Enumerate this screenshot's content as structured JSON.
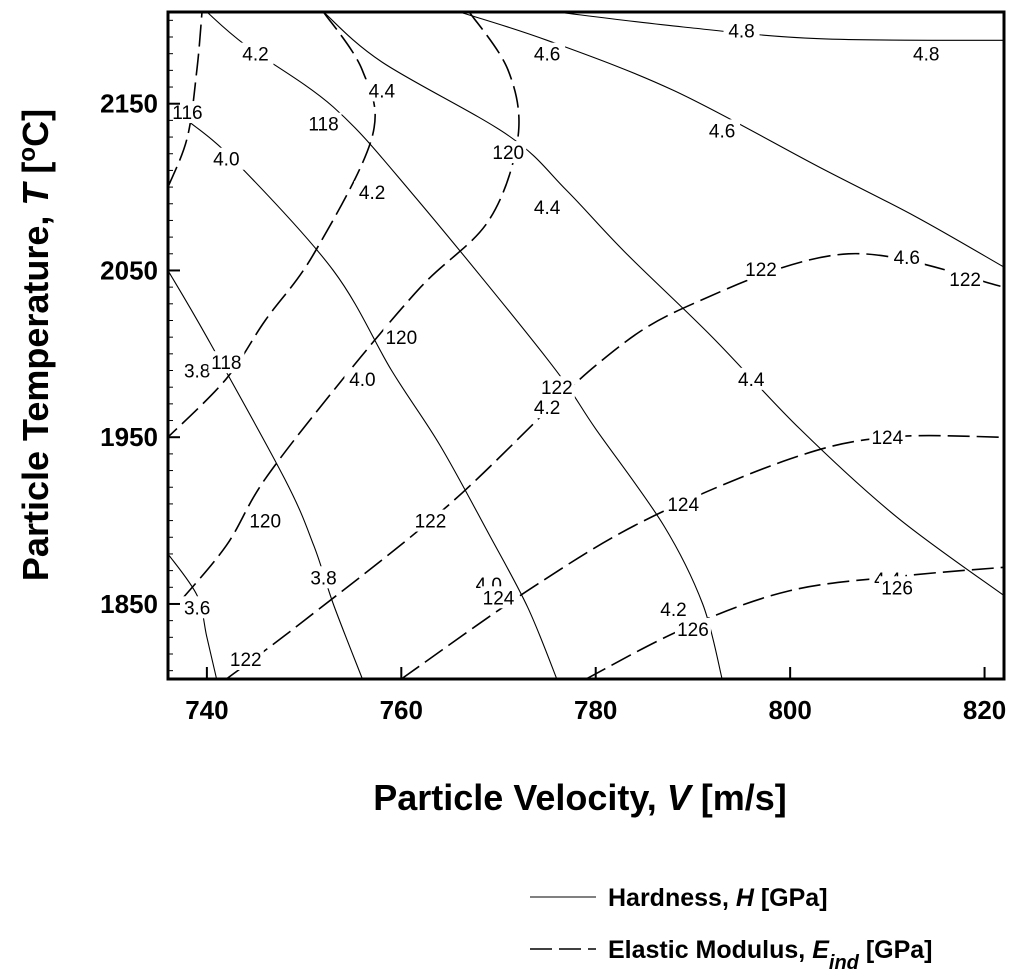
{
  "chart_data": {
    "type": "contour",
    "xlabel": {
      "prefix": "Particle Velocity, ",
      "var": "V",
      "suffix": " [m/s]"
    },
    "ylabel": {
      "prefix": "Particle Temperature, ",
      "var": "T",
      "suffix": " [",
      "sup": "o",
      "unit": "C]"
    },
    "xlim": [
      736,
      822
    ],
    "ylim": [
      1805,
      2205
    ],
    "xticks": [
      740,
      760,
      780,
      800,
      820
    ],
    "yticks": [
      1850,
      1950,
      2050,
      2150
    ],
    "grid": false,
    "legend": {
      "placement": "bottom-right",
      "entries": [
        {
          "style": "solid",
          "prefix": "Hardness, ",
          "var": "H",
          "sub": "",
          "suffix": " [GPa]"
        },
        {
          "style": "dashed",
          "prefix": "Elastic Modulus, ",
          "var": "E",
          "sub": "ind",
          "suffix": " [GPa]"
        }
      ]
    },
    "series": [
      {
        "style": "solid",
        "level": "4.8",
        "points": [
          [
            776,
            2205
          ],
          [
            789,
            2196
          ],
          [
            803,
            2189
          ],
          [
            822,
            2188
          ]
        ],
        "labels": [
          {
            "text": "4.8",
            "x": 795,
            "y": 2194
          },
          {
            "text": "4.8",
            "x": 814,
            "y": 2180
          }
        ]
      },
      {
        "style": "solid",
        "level": "4.6",
        "points": [
          [
            766,
            2205
          ],
          [
            775,
            2188
          ],
          [
            788,
            2158
          ],
          [
            803,
            2112
          ],
          [
            813,
            2082
          ],
          [
            822,
            2052
          ]
        ],
        "labels": [
          {
            "text": "4.6",
            "x": 775,
            "y": 2180
          },
          {
            "text": "4.6",
            "x": 793,
            "y": 2134
          },
          {
            "text": "4.6",
            "x": 812,
            "y": 2058
          }
        ]
      },
      {
        "style": "solid",
        "level": "4.4",
        "points": [
          [
            752,
            2205
          ],
          [
            758,
            2175
          ],
          [
            771,
            2131
          ],
          [
            777,
            2098
          ],
          [
            783,
            2061
          ],
          [
            792,
            2010
          ],
          [
            801,
            1955
          ],
          [
            811,
            1902
          ],
          [
            822,
            1855
          ]
        ],
        "labels": [
          {
            "text": "4.4",
            "x": 758,
            "y": 2158
          },
          {
            "text": "4.4",
            "x": 775,
            "y": 2088
          },
          {
            "text": "4.4",
            "x": 796,
            "y": 1985
          },
          {
            "text": "4.4",
            "x": 810,
            "y": 1865
          }
        ]
      },
      {
        "style": "solid",
        "level": "4.2",
        "points": [
          [
            740,
            2205
          ],
          [
            744,
            2185
          ],
          [
            753,
            2148
          ],
          [
            761,
            2097
          ],
          [
            775,
            1997
          ],
          [
            780,
            1955
          ],
          [
            787,
            1897
          ],
          [
            791,
            1850
          ],
          [
            793,
            1805
          ]
        ],
        "labels": [
          {
            "text": "4.2",
            "x": 745,
            "y": 2180
          },
          {
            "text": "4.2",
            "x": 757,
            "y": 2097
          },
          {
            "text": "4.2",
            "x": 775,
            "y": 1968
          },
          {
            "text": "4.2",
            "x": 788,
            "y": 1847
          }
        ]
      },
      {
        "style": "solid",
        "level": "4.0",
        "points": [
          [
            738,
            2140
          ],
          [
            743,
            2115
          ],
          [
            753,
            2050
          ],
          [
            759,
            1990
          ],
          [
            764,
            1945
          ],
          [
            769,
            1892
          ],
          [
            773,
            1848
          ],
          [
            776,
            1805
          ]
        ],
        "labels": [
          {
            "text": "4.0",
            "x": 742,
            "y": 2117
          },
          {
            "text": "4.0",
            "x": 756,
            "y": 1985
          },
          {
            "text": "4.0",
            "x": 769,
            "y": 1862
          }
        ]
      },
      {
        "style": "solid",
        "level": "3.8",
        "points": [
          [
            736,
            2050
          ],
          [
            740,
            2010
          ],
          [
            748,
            1925
          ],
          [
            751,
            1885
          ],
          [
            753,
            1850
          ],
          [
            756,
            1805
          ]
        ],
        "labels": [
          {
            "text": "3.8",
            "x": 739,
            "y": 1990
          },
          {
            "text": "3.8",
            "x": 752,
            "y": 1866
          }
        ]
      },
      {
        "style": "solid",
        "level": "3.6",
        "points": [
          [
            736,
            1880
          ],
          [
            739,
            1855
          ],
          [
            740,
            1830
          ],
          [
            741,
            1805
          ]
        ],
        "labels": [
          {
            "text": "3.6",
            "x": 739,
            "y": 1848
          }
        ]
      },
      {
        "style": "dashed",
        "level": "116",
        "points": [
          [
            736,
            2100
          ],
          [
            738,
            2130
          ],
          [
            739,
            2172
          ],
          [
            739.5,
            2205
          ]
        ],
        "labels": [
          {
            "text": "116",
            "x": 738,
            "y": 2145
          }
        ]
      },
      {
        "style": "dashed",
        "level": "118",
        "points": [
          [
            752,
            2205
          ],
          [
            756,
            2170
          ],
          [
            757,
            2130
          ],
          [
            751,
            2060
          ],
          [
            746,
            2020
          ],
          [
            742,
            1985
          ],
          [
            736,
            1950
          ]
        ],
        "labels": [
          {
            "text": "118",
            "x": 752,
            "y": 2138
          },
          {
            "text": "118",
            "x": 742,
            "y": 1995
          }
        ]
      },
      {
        "style": "dashed",
        "level": "120",
        "points": [
          [
            767,
            2205
          ],
          [
            771,
            2170
          ],
          [
            772,
            2130
          ],
          [
            769,
            2080
          ],
          [
            762,
            2040
          ],
          [
            754,
            1985
          ],
          [
            746,
            1925
          ],
          [
            742,
            1885
          ],
          [
            737,
            1850
          ]
        ],
        "labels": [
          {
            "text": "120",
            "x": 771,
            "y": 2121
          },
          {
            "text": "120",
            "x": 760,
            "y": 2010
          },
          {
            "text": "120",
            "x": 746,
            "y": 1900
          }
        ]
      },
      {
        "style": "dashed",
        "level": "122",
        "points": [
          [
            742,
            1805
          ],
          [
            750,
            1840
          ],
          [
            765,
            1910
          ],
          [
            780,
            1993
          ],
          [
            790,
            2030
          ],
          [
            806,
            2060
          ],
          [
            822,
            2040
          ]
        ],
        "labels": [
          {
            "text": "122",
            "x": 744,
            "y": 1817
          },
          {
            "text": "122",
            "x": 763,
            "y": 1900
          },
          {
            "text": "122",
            "x": 776,
            "y": 1980
          },
          {
            "text": "122",
            "x": 797,
            "y": 2051
          },
          {
            "text": "122",
            "x": 818,
            "y": 2045
          }
        ]
      },
      {
        "style": "dashed",
        "level": "124",
        "points": [
          [
            760,
            1805
          ],
          [
            773,
            1858
          ],
          [
            785,
            1900
          ],
          [
            800,
            1937
          ],
          [
            810,
            1950
          ],
          [
            822,
            1950
          ]
        ],
        "labels": [
          {
            "text": "124",
            "x": 770,
            "y": 1854
          },
          {
            "text": "124",
            "x": 789,
            "y": 1910
          },
          {
            "text": "124",
            "x": 810,
            "y": 1950
          }
        ]
      },
      {
        "style": "dashed",
        "level": "126",
        "points": [
          [
            779,
            1805
          ],
          [
            789,
            1835
          ],
          [
            800,
            1858
          ],
          [
            812,
            1867
          ],
          [
            822,
            1872
          ]
        ],
        "labels": [
          {
            "text": "126",
            "x": 790,
            "y": 1835
          },
          {
            "text": "126",
            "x": 811,
            "y": 1860
          }
        ]
      }
    ]
  }
}
